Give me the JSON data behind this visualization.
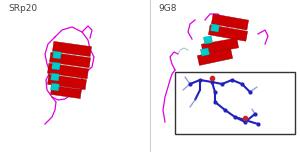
{
  "figsize": [
    3.0,
    1.52
  ],
  "dpi": 100,
  "label_left": "SRp20",
  "label_right": "9G8",
  "label_fontsize": 6.5,
  "label_color": "#444444",
  "divider_color": "#cccccc",
  "helix_color": "#cc0000",
  "strand_color": "#00cccc",
  "loop_color": "#dd00dd",
  "box_color": "#333333",
  "stick_dark": "#2222bb",
  "stick_mid": "#5555cc",
  "stick_light": "#9999dd",
  "oxygen_color": "#cc2222"
}
